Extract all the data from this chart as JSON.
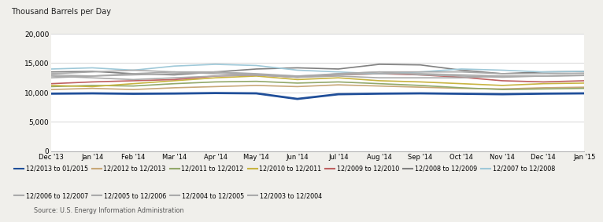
{
  "title": "Thousand Barrels per Day",
  "source": "Source: U.S. Energy Information Administration",
  "x_labels": [
    "Dec '13",
    "Jan '14",
    "Feb '14",
    "Mar '14",
    "Apr '14",
    "May '14",
    "Jun '14",
    "Jul '14",
    "Aug '14",
    "Sep '14",
    "Oct '14",
    "Nov '14",
    "Dec '14",
    "Jan '15"
  ],
  "ylim": [
    0,
    20000
  ],
  "yticks": [
    0,
    5000,
    10000,
    15000,
    20000
  ],
  "series": [
    {
      "label": "12/2013 to 01/2015",
      "color": "#1f4e99",
      "linewidth": 2.0,
      "values": [
        9800,
        9850,
        9780,
        9820,
        9900,
        9850,
        8900,
        9700,
        9800,
        9850,
        9780,
        9700,
        9800,
        9850
      ]
    },
    {
      "label": "12/2012 to 12/2013",
      "color": "#c8a878",
      "linewidth": 1.2,
      "values": [
        10500,
        10700,
        10500,
        10800,
        11000,
        11200,
        11000,
        11300,
        11100,
        10900,
        10700,
        10600,
        10800,
        10900
      ]
    },
    {
      "label": "12/2011 to 12/2012",
      "color": "#92a86a",
      "linewidth": 1.2,
      "values": [
        11000,
        11200,
        11100,
        11500,
        11800,
        11900,
        11600,
        11800,
        11500,
        11200,
        10800,
        10500,
        10600,
        10700
      ]
    },
    {
      "label": "12/2010 to 12/2011",
      "color": "#c8b440",
      "linewidth": 1.2,
      "values": [
        11200,
        11000,
        11500,
        12000,
        12500,
        12800,
        12200,
        12500,
        12000,
        11800,
        11500,
        11200,
        11500,
        11600
      ]
    },
    {
      "label": "12/2009 to 12/2010",
      "color": "#bf6060",
      "linewidth": 1.2,
      "values": [
        11500,
        11800,
        12000,
        12200,
        12800,
        13000,
        12600,
        13000,
        13200,
        13000,
        12600,
        12000,
        11800,
        12000
      ]
    },
    {
      "label": "12/2008 to 12/2009",
      "color": "#808080",
      "linewidth": 1.2,
      "values": [
        13500,
        13600,
        13200,
        13000,
        13500,
        14000,
        14200,
        14000,
        14800,
        14700,
        13800,
        13200,
        13500,
        13600
      ]
    },
    {
      "label": "12/2007 to 12/2008",
      "color": "#9ec8d8",
      "linewidth": 1.2,
      "values": [
        14000,
        14200,
        13800,
        14500,
        14800,
        14600,
        13800,
        13500,
        13200,
        13500,
        14000,
        13800,
        13500,
        13600
      ]
    },
    {
      "label": "12/2006 to 12/2007",
      "color": "#aaaaaa",
      "linewidth": 1.2,
      "values": [
        13200,
        13500,
        13800,
        13500,
        13200,
        13000,
        12800,
        13200,
        13500,
        13000,
        12800,
        12600,
        12800,
        13000
      ]
    },
    {
      "label": "12/2005 to 12/2006",
      "color": "#aaaaaa",
      "linewidth": 1.2,
      "values": [
        12800,
        12500,
        12200,
        12500,
        12800,
        13000,
        12600,
        13200,
        13500,
        13500,
        13500,
        13200,
        13200,
        13300
      ]
    },
    {
      "label": "12/2004 to 12/2005",
      "color": "#aaaaaa",
      "linewidth": 1.2,
      "values": [
        13000,
        12800,
        13200,
        13500,
        13500,
        13200,
        12800,
        13000,
        13200,
        13200,
        13000,
        12800,
        12800,
        12900
      ]
    },
    {
      "label": "12/2003 to 12/2004",
      "color": "#aaaaaa",
      "linewidth": 1.2,
      "values": [
        12500,
        12800,
        13000,
        13200,
        13500,
        13000,
        12600,
        12800,
        12500,
        12500,
        12500,
        12800,
        12800,
        12900
      ]
    }
  ],
  "background_color": "#f0efeb",
  "plot_bg_color": "#ffffff",
  "grid_color": "#d0d0d0",
  "legend_row1_ncol": 7,
  "legend_row2_ncol": 4,
  "legend_fontsize": 5.8
}
